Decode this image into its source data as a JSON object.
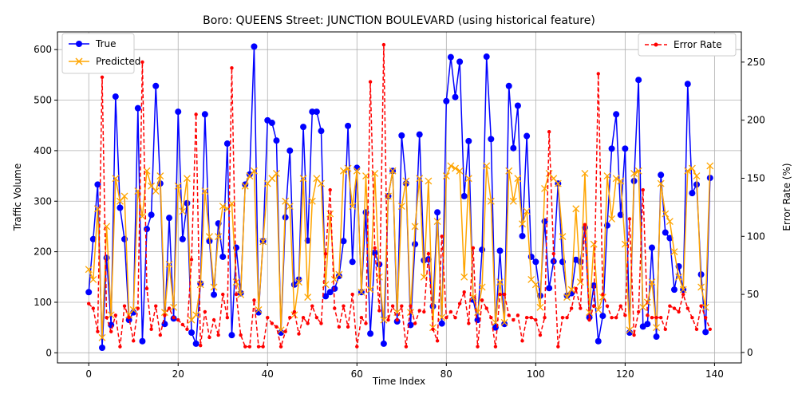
{
  "chart_data": {
    "type": "line",
    "title": "Boro: QUEENS Street: JUNCTION BOULEVARD (using historical feature)",
    "xlabel": "Time Index",
    "ylabel_left": "Traffic Volume",
    "ylabel_right": "Error Rate (%)",
    "xlim": [
      -7,
      146
    ],
    "ylim_left": [
      -20,
      635
    ],
    "ylim_right": [
      -9,
      276
    ],
    "x_ticks": [
      0,
      20,
      40,
      60,
      80,
      100,
      120,
      140
    ],
    "y_ticks_left": [
      0,
      100,
      200,
      300,
      400,
      500,
      600
    ],
    "y_ticks_right": [
      0,
      50,
      100,
      150,
      200,
      250
    ],
    "grid": true,
    "legend_left_placement": "top-left",
    "legend_right_placement": "top-right",
    "series": [
      {
        "name": "True",
        "axis": "left",
        "color": "#0000ff",
        "marker": "circle",
        "line": "solid",
        "values": [
          120,
          225,
          333,
          10,
          188,
          55,
          507,
          287,
          225,
          65,
          80,
          484,
          23,
          245,
          273,
          528,
          335,
          57,
          267,
          68,
          477,
          225,
          296,
          40,
          18,
          137,
          472,
          221,
          115,
          256,
          190,
          414,
          35,
          208,
          118,
          333,
          353,
          606,
          80,
          221,
          460,
          455,
          420,
          40,
          268,
          400,
          135,
          145,
          447,
          222,
          477,
          477,
          439,
          112,
          120,
          127,
          152,
          221,
          449,
          180,
          366,
          120,
          278,
          38,
          198,
          175,
          18,
          310,
          360,
          62,
          430,
          335,
          55,
          215,
          432,
          183,
          185,
          92,
          278,
          58,
          498,
          585,
          506,
          576,
          310,
          419,
          105,
          65,
          204,
          586,
          423,
          50,
          202,
          57,
          528,
          405,
          489,
          231,
          429,
          190,
          180,
          113,
          260,
          128,
          181,
          335,
          180,
          113,
          118,
          184,
          180,
          248,
          70,
          133,
          23,
          73,
          252,
          404,
          472,
          273,
          404,
          40,
          340,
          540,
          52,
          57,
          208,
          32,
          352,
          238,
          227,
          125,
          171,
          125,
          532,
          316,
          333,
          155,
          41,
          346
        ]
      },
      {
        "name": "Predicted",
        "axis": "left",
        "color": "#ffa500",
        "marker": "x",
        "line": "solid",
        "values": [
          165,
          145,
          285,
          30,
          250,
          75,
          345,
          300,
          310,
          75,
          85,
          320,
          270,
          360,
          330,
          320,
          350,
          80,
          175,
          90,
          330,
          280,
          345,
          65,
          75,
          135,
          320,
          230,
          130,
          230,
          290,
          285,
          295,
          140,
          115,
          330,
          350,
          360,
          85,
          220,
          335,
          345,
          355,
          45,
          300,
          290,
          75,
          140,
          345,
          110,
          300,
          345,
          335,
          135,
          275,
          145,
          155,
          360,
          365,
          290,
          360,
          120,
          350,
          125,
          355,
          150,
          65,
          310,
          360,
          80,
          290,
          340,
          80,
          250,
          345,
          150,
          340,
          50,
          260,
          70,
          350,
          370,
          365,
          360,
          150,
          345,
          110,
          80,
          130,
          370,
          300,
          60,
          140,
          60,
          360,
          300,
          345,
          255,
          280,
          145,
          135,
          90,
          325,
          355,
          345,
          335,
          230,
          110,
          125,
          285,
          140,
          355,
          80,
          215,
          85,
          110,
          350,
          265,
          345,
          340,
          215,
          45,
          355,
          360,
          90,
          100,
          140,
          50,
          335,
          275,
          260,
          200,
          150,
          125,
          360,
          365,
          350,
          130,
          90,
          370
        ]
      },
      {
        "name": "Error Rate",
        "axis": "right",
        "color": "#ff0000",
        "marker": "dot",
        "line": "dashed",
        "values": [
          42,
          38,
          18,
          237,
          30,
          18,
          32,
          5,
          40,
          30,
          10,
          38,
          250,
          55,
          20,
          40,
          15,
          32,
          38,
          30,
          28,
          24,
          20,
          80,
          205,
          6,
          35,
          13,
          28,
          15,
          50,
          30,
          245,
          50,
          15,
          5,
          5,
          45,
          5,
          5,
          30,
          25,
          22,
          5,
          18,
          30,
          35,
          16,
          30,
          25,
          40,
          30,
          25,
          85,
          140,
          38,
          22,
          40,
          22,
          50,
          5,
          30,
          25,
          233,
          90,
          36,
          265,
          28,
          40,
          28,
          40,
          5,
          40,
          25,
          36,
          35,
          85,
          20,
          10,
          100,
          30,
          35,
          30,
          42,
          52,
          25,
          90,
          5,
          45,
          38,
          30,
          5,
          50,
          50,
          32,
          28,
          32,
          10,
          30,
          30,
          28,
          15,
          30,
          190,
          85,
          5,
          30,
          30,
          38,
          55,
          38,
          110,
          28,
          40,
          240,
          50,
          40,
          30,
          30,
          40,
          32,
          115,
          15,
          35,
          140,
          32,
          30,
          30,
          30,
          20,
          40,
          38,
          35,
          50,
          38,
          30,
          20,
          40,
          30,
          20
        ]
      }
    ]
  }
}
